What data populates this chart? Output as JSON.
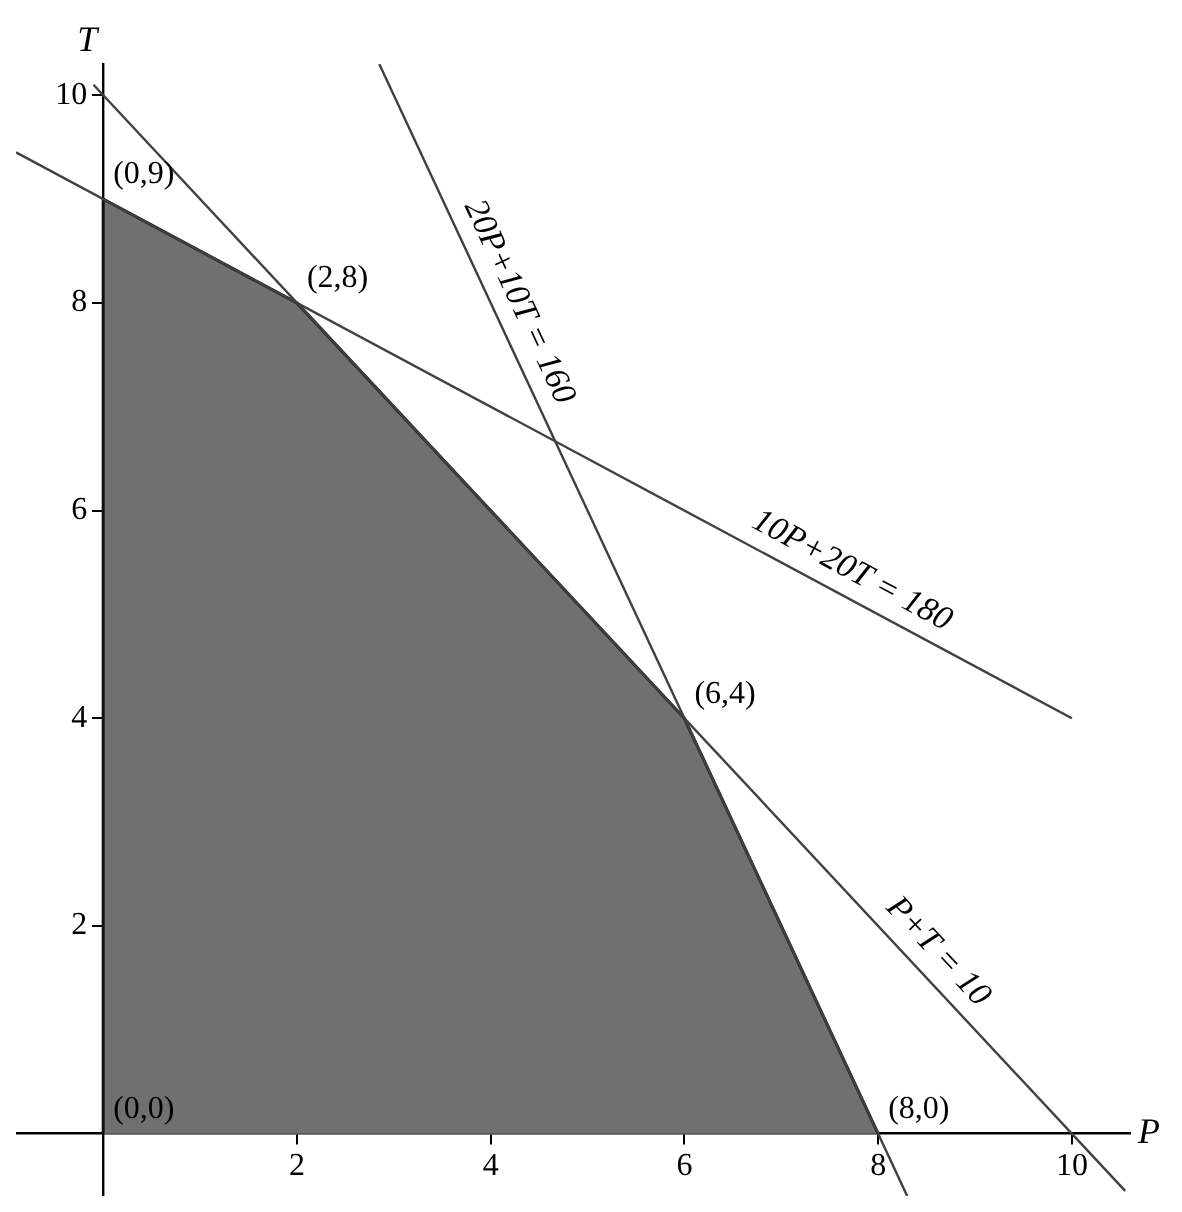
{
  "chart_data": {
    "type": "line",
    "xlabel": "P",
    "ylabel": "T",
    "xlim": [
      -0.9,
      10.6
    ],
    "ylim": [
      -0.6,
      10.3
    ],
    "xticks": [
      2,
      4,
      6,
      8,
      10
    ],
    "yticks": [
      2,
      4,
      6,
      8,
      10
    ],
    "grid": false,
    "legend": false,
    "marker": "none",
    "line_style": "solid",
    "series": [
      {
        "type": "area",
        "color": "#707070",
        "x": [
          0,
          0,
          2,
          6,
          8
        ],
        "values": [
          0,
          9,
          8,
          4,
          0
        ]
      },
      {
        "name": "20P+10T = 160",
        "color": "#404040",
        "x": [
          2.85,
          8.3
        ],
        "values": [
          10.3,
          -0.6
        ]
      },
      {
        "name": "10P+20T = 180",
        "color": "#404040",
        "x": [
          -0.9,
          10
        ],
        "values": [
          9.45,
          4
        ]
      },
      {
        "name": "P+T = 10",
        "color": "#404040",
        "x": [
          -0.1,
          10.55
        ],
        "values": [
          10.1,
          -0.55
        ]
      }
    ],
    "annotations": [
      {
        "text": "(0,9)",
        "x": 0,
        "y": 9
      },
      {
        "text": "(2,8)",
        "x": 2,
        "y": 8
      },
      {
        "text": "(6,4)",
        "x": 6,
        "y": 4
      },
      {
        "text": "(8,0)",
        "x": 8,
        "y": 0
      },
      {
        "text": "(0,0)",
        "x": 0,
        "y": 0
      }
    ]
  }
}
